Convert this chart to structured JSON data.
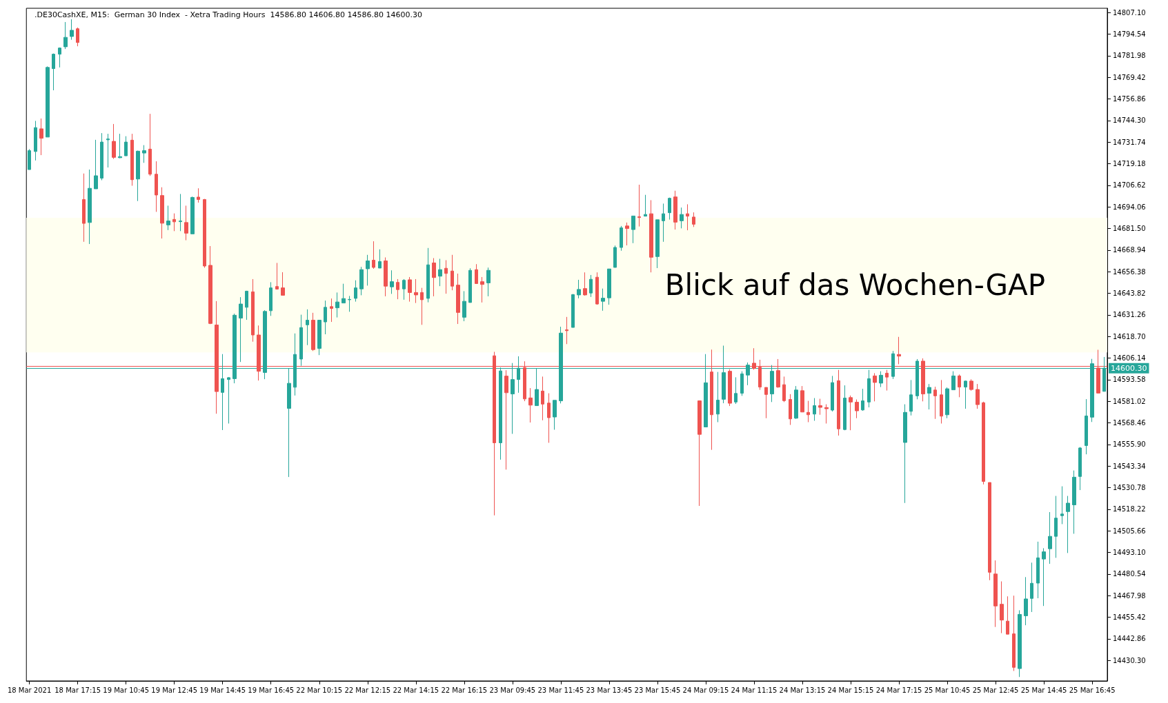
{
  "chart_data": {
    "type": "candlestick",
    "title": ".DE30CashXE, M15:  German 30 Index  - Xetra Trading Hours  14586.80 14606.80 14586.80 14600.30",
    "categories": [
      "18 Mar 2021",
      null,
      null,
      null,
      null,
      null,
      null,
      null,
      "18 Mar 17:15",
      null,
      null,
      null,
      null,
      null,
      null,
      null,
      "19 Mar 10:45",
      null,
      null,
      null,
      null,
      null,
      null,
      null,
      "19 Mar 12:45",
      null,
      null,
      null,
      null,
      null,
      null,
      null,
      "19 Mar 14:45",
      null,
      null,
      null,
      null,
      null,
      null,
      null,
      "19 Mar 16:45",
      null,
      null,
      null,
      null,
      null,
      null,
      null,
      "22 Mar 10:15",
      null,
      null,
      null,
      null,
      null,
      null,
      null,
      "22 Mar 12:15",
      null,
      null,
      null,
      null,
      null,
      null,
      null,
      "22 Mar 14:15",
      null,
      null,
      null,
      null,
      null,
      null,
      null,
      "22 Mar 16:15",
      null,
      null,
      null,
      null,
      null,
      null,
      null,
      "23 Mar 09:45",
      null,
      null,
      null,
      null,
      null,
      null,
      null,
      "23 Mar 11:45",
      null,
      null,
      null,
      null,
      null,
      null,
      null,
      "23 Mar 13:45",
      null,
      null,
      null,
      null,
      null,
      null,
      null,
      "23 Mar 15:45",
      null,
      null,
      null,
      null,
      null,
      null,
      null,
      "24 Mar 09:15",
      null,
      null,
      null,
      null,
      null,
      null,
      null,
      "24 Mar 11:15",
      null,
      null,
      null,
      null,
      null,
      null,
      null,
      "24 Mar 13:15",
      null,
      null,
      null,
      null,
      null,
      null,
      null,
      "24 Mar 15:15",
      null,
      null,
      null,
      null,
      null,
      null,
      null,
      "24 Mar 17:15",
      null,
      null,
      null,
      null,
      null,
      null,
      null,
      "25 Mar 10:45",
      null,
      null,
      null,
      null,
      null,
      null,
      null,
      "25 Mar 12:45",
      null,
      null,
      null,
      null,
      null,
      null,
      null,
      "25 Mar 14:45",
      null,
      null,
      null,
      null,
      null,
      null,
      null,
      "25 Mar 16:45",
      null,
      null
    ],
    "ohlc": [
      [
        14715.8,
        14727.7,
        14715.8,
        14726.8
      ],
      [
        14726.3,
        14744.1,
        14721.1,
        14740.2
      ],
      [
        14739.5,
        14745.5,
        14724.2,
        14734.0
      ],
      [
        14734.7,
        14775.8,
        14734.7,
        14775.2
      ],
      [
        14774.5,
        14783.3,
        14761.9,
        14782.9
      ],
      [
        14782.9,
        14786.8,
        14775.2,
        14786.5
      ],
      [
        14787.2,
        14801.6,
        14785.9,
        14792.7
      ],
      [
        14793.2,
        14803.9,
        14791.3,
        14796.8
      ],
      [
        14797.7,
        14798.4,
        14787.5,
        14789.7
      ],
      [
        14698.4,
        14713.5,
        14673.8,
        14684.5
      ],
      [
        14685.0,
        14715.8,
        14672.5,
        14704.9
      ],
      [
        14704.6,
        14733.1,
        14704.6,
        14712.2
      ],
      [
        14710.8,
        14737.0,
        14709.6,
        14731.8
      ],
      [
        14733.1,
        14736.6,
        14717.0,
        14733.6
      ],
      [
        14732.2,
        14742.3,
        14722.0,
        14722.9
      ],
      [
        14722.7,
        14736.6,
        14722.4,
        14723.3
      ],
      [
        14723.8,
        14735.2,
        14723.8,
        14731.8
      ],
      [
        14732.9,
        14736.6,
        14706.4,
        14709.9
      ],
      [
        14710.3,
        14726.8,
        14697.5,
        14726.5
      ],
      [
        14725.4,
        14730.0,
        14719.7,
        14726.8
      ],
      [
        14727.7,
        14748.2,
        14712.1,
        14713.1
      ],
      [
        14713.1,
        14720.6,
        14691.2,
        14701.0
      ],
      [
        14700.7,
        14705.5,
        14675.7,
        14684.6
      ],
      [
        14683.6,
        14694.8,
        14680.6,
        14685.9
      ],
      [
        14686.8,
        14690.3,
        14680.0,
        14685.4
      ],
      [
        14685.5,
        14701.6,
        14680.0,
        14685.9
      ],
      [
        14685.0,
        14694.8,
        14674.7,
        14678.8
      ],
      [
        14678.4,
        14700.1,
        14678.4,
        14699.6
      ],
      [
        14699.8,
        14704.9,
        14696.6,
        14698.4
      ],
      [
        14698.4,
        14698.7,
        14658.7,
        14659.7
      ],
      [
        14660.1,
        14671.3,
        14625.9,
        14626.3
      ],
      [
        14625.4,
        14639.3,
        14573.8,
        14586.7
      ],
      [
        14586.2,
        14608.5,
        14564.3,
        14594.2
      ],
      [
        14593.7,
        14595.1,
        14568.1,
        14594.8
      ],
      [
        14594.2,
        14632.0,
        14591.5,
        14631.1
      ],
      [
        14629.4,
        14641.6,
        14603.9,
        14637.6
      ],
      [
        14635.7,
        14645.3,
        14628.4,
        14645.1
      ],
      [
        14644.7,
        14652.1,
        14615.7,
        14619.6
      ],
      [
        14619.6,
        14625.1,
        14593.1,
        14598.5
      ],
      [
        14597.8,
        14634.0,
        14593.9,
        14633.3
      ],
      [
        14633.7,
        14650.3,
        14630.7,
        14647.0
      ],
      [
        14647.8,
        14661.5,
        14646.0,
        14646.3
      ],
      [
        14647.0,
        14656.1,
        14642.7,
        14642.7
      ],
      [
        14576.9,
        14600.3,
        14537.0,
        14591.5
      ],
      [
        14589.2,
        14620.5,
        14584.4,
        14608.3
      ],
      [
        14605.6,
        14631.4,
        14601.7,
        14623.9
      ],
      [
        14625.5,
        14634.5,
        14613.7,
        14628.2
      ],
      [
        14628.2,
        14632.5,
        14610.3,
        14611.1
      ],
      [
        14611.8,
        14628.2,
        14607.9,
        14628.2
      ],
      [
        14627.2,
        14639.6,
        14620.0,
        14635.7
      ],
      [
        14636.1,
        14640.8,
        14627.2,
        14635.0
      ],
      [
        14635.4,
        14644.3,
        14629.8,
        14638.8
      ],
      [
        14638.2,
        14649.4,
        14638.2,
        14640.8
      ],
      [
        14640.1,
        14642.3,
        14633.1,
        14640.3
      ],
      [
        14640.9,
        14651.4,
        14639.0,
        14647.0
      ],
      [
        14646.4,
        14659.2,
        14642.7,
        14657.6
      ],
      [
        14658.1,
        14666.2,
        14648.3,
        14662.7
      ],
      [
        14663.1,
        14674.1,
        14658.1,
        14658.9
      ],
      [
        14658.5,
        14669.4,
        14658.5,
        14662.3
      ],
      [
        14662.7,
        14664.7,
        14642.1,
        14648.0
      ],
      [
        14647.6,
        14657.2,
        14643.5,
        14650.6
      ],
      [
        14650.2,
        14652.1,
        14640.4,
        14646.0
      ],
      [
        14646.4,
        14652.1,
        14640.1,
        14651.4
      ],
      [
        14651.7,
        14653.3,
        14639.0,
        14644.3
      ],
      [
        14644.3,
        14652.1,
        14638.2,
        14642.9
      ],
      [
        14644.3,
        14647.0,
        14625.5,
        14640.1
      ],
      [
        14640.9,
        14670.2,
        14638.6,
        14660.4
      ],
      [
        14661.5,
        14664.3,
        14642.1,
        14653.0
      ],
      [
        14653.8,
        14663.9,
        14648.0,
        14657.6
      ],
      [
        14658.4,
        14663.1,
        14643.6,
        14655.4
      ],
      [
        14656.8,
        14666.2,
        14645.6,
        14648.0
      ],
      [
        14648.6,
        14655.3,
        14626.0,
        14632.7
      ],
      [
        14629.9,
        14645.1,
        14627.6,
        14639.2
      ],
      [
        14638.5,
        14658.4,
        14638.5,
        14657.2
      ],
      [
        14657.6,
        14660.8,
        14649.5,
        14649.5
      ],
      [
        14650.6,
        14653.3,
        14638.5,
        14649.0
      ],
      [
        14649.9,
        14658.8,
        14642.1,
        14657.2
      ],
      [
        14607.5,
        14609.8,
        14514.7,
        14556.9
      ],
      [
        14556.9,
        14600.7,
        14547.1,
        14598.7
      ],
      [
        14595.7,
        14599.1,
        14541.3,
        14586.0
      ],
      [
        14585.3,
        14603.3,
        14562.1,
        14593.7
      ],
      [
        14593.7,
        14607.2,
        14586.0,
        14600.3
      ],
      [
        14600.7,
        14604.3,
        14581.1,
        14582.4
      ],
      [
        14583.0,
        14588.7,
        14568.7,
        14578.8
      ],
      [
        14578.5,
        14600.3,
        14578.5,
        14587.9
      ],
      [
        14587.0,
        14595.4,
        14570.0,
        14579.4
      ],
      [
        14580.0,
        14585.7,
        14556.9,
        14571.5
      ],
      [
        14571.9,
        14581.6,
        14564.5,
        14581.6
      ],
      [
        14581.3,
        14624.4,
        14579.8,
        14620.7
      ],
      [
        14622.6,
        14630.1,
        14614.3,
        14622.1
      ],
      [
        14624.0,
        14643.4,
        14624.0,
        14643.1
      ],
      [
        14642.9,
        14651.7,
        14640.9,
        14646.1
      ],
      [
        14646.6,
        14656.0,
        14642.5,
        14642.9
      ],
      [
        14644.0,
        14654.5,
        14641.7,
        14652.0
      ],
      [
        14653.2,
        14656.0,
        14637.2,
        14637.6
      ],
      [
        14639.2,
        14646.6,
        14633.7,
        14641.0
      ],
      [
        14641.2,
        14658.0,
        14637.2,
        14658.0
      ],
      [
        14658.9,
        14671.6,
        14658.9,
        14670.5
      ],
      [
        14670.5,
        14683.0,
        14668.6,
        14681.9
      ],
      [
        14683.0,
        14685.0,
        14671.7,
        14681.5
      ],
      [
        14680.9,
        14688.8,
        14673.0,
        14688.8
      ],
      [
        14688.4,
        14707.0,
        14682.7,
        14687.9
      ],
      [
        14688.7,
        14701.1,
        14688.7,
        14689.7
      ],
      [
        14690.1,
        14698.0,
        14656.0,
        14664.8
      ],
      [
        14665.2,
        14686.6,
        14658.5,
        14686.6
      ],
      [
        14686.0,
        14696.0,
        14673.8,
        14690.1
      ],
      [
        14690.7,
        14699.5,
        14686.7,
        14699.1
      ],
      [
        14699.9,
        14703.5,
        14680.9,
        14685.2
      ],
      [
        14686.0,
        14693.7,
        14681.6,
        14689.7
      ],
      [
        14690.1,
        14695.6,
        14680.5,
        14688.7
      ],
      [
        14688.2,
        14690.9,
        14682.4,
        14684.0
      ],
      [
        14581.3,
        14581.3,
        14520.2,
        14561.8
      ],
      [
        14566.1,
        14608.5,
        14566.1,
        14591.8
      ],
      [
        14598.1,
        14611.1,
        14552.8,
        14573.2
      ],
      [
        14573.6,
        14598.1,
        14568.9,
        14581.7
      ],
      [
        14582.2,
        14613.4,
        14579.9,
        14597.7
      ],
      [
        14598.5,
        14599.7,
        14578.3,
        14579.9
      ],
      [
        14580.6,
        14595.0,
        14579.5,
        14585.6
      ],
      [
        14585.7,
        14598.5,
        14584.2,
        14597.0
      ],
      [
        14596.3,
        14603.6,
        14590.4,
        14602.1
      ],
      [
        14603.2,
        14611.9,
        14599.4,
        14600.2
      ],
      [
        14600.9,
        14605.2,
        14587.7,
        14589.3
      ],
      [
        14589.1,
        14589.1,
        14571.2,
        14585.0
      ],
      [
        14585.3,
        14602.1,
        14580.6,
        14598.5
      ],
      [
        14598.9,
        14605.6,
        14588.9,
        14589.3
      ],
      [
        14590.7,
        14595.4,
        14580.6,
        14581.4
      ],
      [
        14582.1,
        14585.2,
        14567.3,
        14570.8
      ],
      [
        14571.2,
        14589.9,
        14570.8,
        14587.6
      ],
      [
        14587.2,
        14589.9,
        14574.8,
        14574.8
      ],
      [
        14574.6,
        14581.3,
        14568.9,
        14573.2
      ],
      [
        14573.6,
        14582.9,
        14569.7,
        14578.5
      ],
      [
        14578.5,
        14582.5,
        14573.2,
        14577.5
      ],
      [
        14577.4,
        14579.3,
        14568.1,
        14576.7
      ],
      [
        14575.9,
        14595.8,
        14575.1,
        14591.9
      ],
      [
        14593.0,
        14599.3,
        14561.1,
        14565.0
      ],
      [
        14564.6,
        14590.3,
        14564.2,
        14582.9
      ],
      [
        14583.2,
        14584.4,
        14564.2,
        14580.6
      ],
      [
        14580.5,
        14582.1,
        14571.2,
        14575.5
      ],
      [
        14576.0,
        14588.3,
        14575.5,
        14581.3
      ],
      [
        14580.6,
        14599.3,
        14577.5,
        14594.2
      ],
      [
        14595.8,
        14597.4,
        14581.0,
        14592.0
      ],
      [
        14591.6,
        14598.5,
        14589.3,
        14596.2
      ],
      [
        14597.4,
        14599.3,
        14587.3,
        14595.1
      ],
      [
        14595.5,
        14610.3,
        14594.0,
        14608.7
      ],
      [
        14608.3,
        14618.5,
        14602.6,
        14607.3
      ],
      [
        14557.1,
        14579.3,
        14521.9,
        14574.6
      ],
      [
        14575.2,
        14593.4,
        14572.8,
        14584.8
      ],
      [
        14584.2,
        14605.6,
        14582.2,
        14604.4
      ],
      [
        14604.4,
        14606.0,
        14581.0,
        14585.3
      ],
      [
        14585.7,
        14591.1,
        14576.3,
        14589.1
      ],
      [
        14587.6,
        14589.5,
        14570.8,
        14584.2
      ],
      [
        14584.8,
        14593.4,
        14568.1,
        14572.4
      ],
      [
        14573.2,
        14589.1,
        14571.2,
        14588.3
      ],
      [
        14587.7,
        14598.5,
        14587.7,
        14595.8
      ],
      [
        14595.8,
        14596.6,
        14583.4,
        14589.3
      ],
      [
        14589.3,
        14593.1,
        14576.7,
        14592.8
      ],
      [
        14592.8,
        14593.8,
        14587.2,
        14587.9
      ],
      [
        14587.9,
        14591.1,
        14576.7,
        14579.1
      ],
      [
        14580.2,
        14580.8,
        14532.7,
        14534.4
      ],
      [
        14533.8,
        14533.8,
        14477.0,
        14481.6
      ],
      [
        14480.6,
        14488.5,
        14449.8,
        14462.0
      ],
      [
        14463.0,
        14476.3,
        14446.2,
        14453.8
      ],
      [
        14453.2,
        14467.6,
        14445.6,
        14445.6
      ],
      [
        14445.8,
        14468.0,
        14424.2,
        14426.3
      ],
      [
        14425.6,
        14459.5,
        14420.7,
        14457.1
      ],
      [
        14456.3,
        14478.8,
        14450.8,
        14466.1
      ],
      [
        14466.4,
        14487.2,
        14458.5,
        14475.2
      ],
      [
        14475.3,
        14499.4,
        14466.5,
        14490.0
      ],
      [
        14489.3,
        14495.6,
        14462.0,
        14493.5
      ],
      [
        14495.3,
        14516.6,
        14486.5,
        14502.5
      ],
      [
        14502.5,
        14526.0,
        14490.0,
        14513.1
      ],
      [
        14514.5,
        14531.6,
        14509.6,
        14515.5
      ],
      [
        14516.9,
        14526.0,
        14492.8,
        14521.8
      ],
      [
        14520.8,
        14540.8,
        14504.0,
        14536.9
      ],
      [
        14537.3,
        14554.4,
        14529.4,
        14553.9
      ],
      [
        14555.3,
        14582.3,
        14550.2,
        14572.5
      ],
      [
        14571.8,
        14605.7,
        14569.0,
        14602.9
      ],
      [
        14600.4,
        14611.0,
        14585.8,
        14585.8
      ],
      [
        14586.8,
        14606.8,
        14586.8,
        14600.3
      ]
    ],
    "ylim": [
      14418.4,
      14809.6
    ],
    "yticks": [
      {
        "value": 14430.3,
        "label": "14430.30"
      },
      14442.86,
      14455.42,
      14467.98,
      14480.54,
      {
        "value": 14493.1,
        "label": "14493.10"
      },
      14505.66,
      14518.22,
      14530.78,
      14543.34,
      {
        "value": 14555.9,
        "label": "14555.90"
      },
      14568.46,
      14581.02,
      14593.58,
      14606.14,
      {
        "value": 14618.7,
        "label": "14618.70"
      },
      14631.26,
      14643.82,
      14656.38,
      14668.94,
      {
        "value": 14681.5,
        "label": "14681.50"
      },
      14694.06,
      14706.62,
      14719.18,
      14731.74,
      {
        "value": 14744.3,
        "label": "14744.30"
      },
      14756.86,
      14769.42,
      14781.98,
      14794.54,
      {
        "value": 14807.1,
        "label": "14807.10"
      }
    ],
    "ref_lines": [
      {
        "axis": "y",
        "value": 14601.4,
        "color": "#ef5350"
      },
      {
        "axis": "y",
        "value": 14600.3,
        "label": "14600.30",
        "color": "#26a69a"
      }
    ],
    "bands": [
      {
        "axis": "y",
        "from": 14609.5,
        "to": 14687.8,
        "label": "Blick auf das Wochen-GAP",
        "color": "#fffff0"
      }
    ],
    "grid": false
  }
}
